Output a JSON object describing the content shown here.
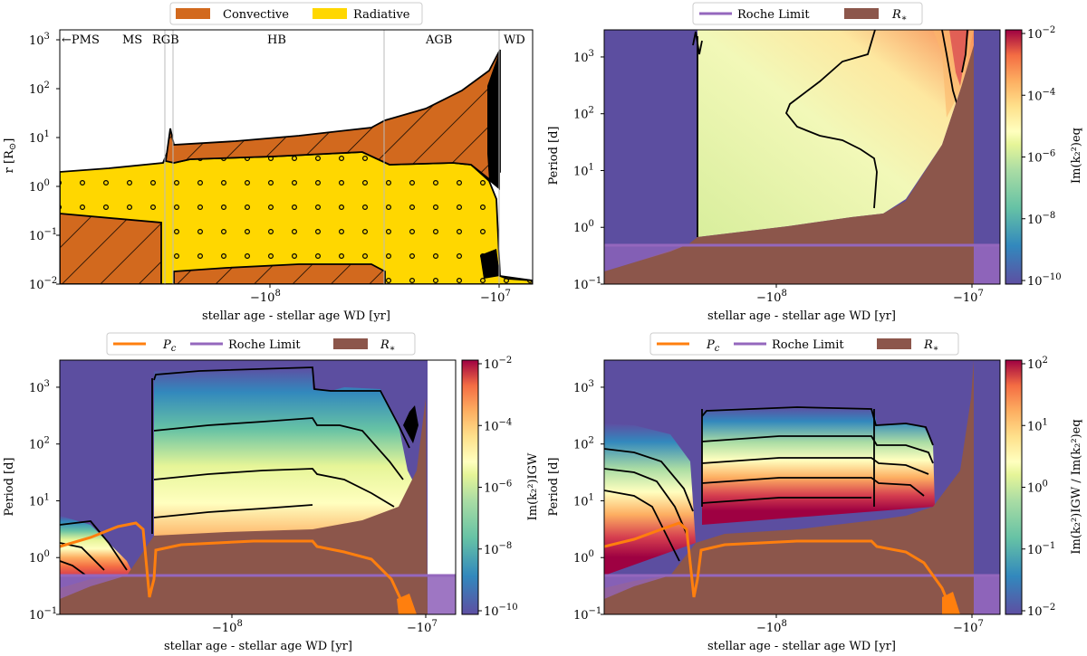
{
  "colors": {
    "convective": "#d2691e",
    "radiative": "#ffd700",
    "background_mode": "#5c4ea0",
    "roche": "#9467bd",
    "rstar": "#8c564b",
    "pc": "#ff7f0e",
    "contour": "#000000",
    "colormap": "Spectral_r"
  },
  "panels": {
    "top_left": {
      "legend": [
        "Convective",
        "Radiative"
      ],
      "ylabel": "r [R$_\\odot$]",
      "ylabel_text": "r [R",
      "ylabel_sub": "⊙",
      "ylabel_end": "]",
      "xlabel": "stellar age - stellar age WD [yr]",
      "regions": [
        "←PMS",
        "MS",
        "RGB",
        "HB",
        "AGB",
        "WD"
      ]
    },
    "top_right": {
      "legend": [
        "Roche Limit",
        "R"
      ],
      "legend_sub": "∗",
      "ylabel": "Period [d]",
      "xlabel": "stellar age - stellar age WD [yr]",
      "cbar_label": "Im(k₂²)eq",
      "cbar_ticks": [
        "10",
        "10",
        "10",
        "10",
        "10"
      ],
      "cbar_exps": [
        "−2",
        "−4",
        "−6",
        "−8",
        "−10"
      ]
    },
    "bottom_left": {
      "legend": [
        "P",
        "Roche Limit",
        "R"
      ],
      "legend_subs": [
        "c",
        "",
        "∗"
      ],
      "ylabel": "Period [d]",
      "xlabel": "stellar age - stellar age WD [yr]",
      "cbar_label": "Im(k₂²)IGW",
      "cbar_ticks": [
        "10",
        "10",
        "10",
        "10",
        "10"
      ],
      "cbar_exps": [
        "−2",
        "−4",
        "−6",
        "−8",
        "−10"
      ]
    },
    "bottom_right": {
      "legend": [
        "P",
        "Roche Limit",
        "R"
      ],
      "legend_subs": [
        "c",
        "",
        "∗"
      ],
      "ylabel": "Period [d]",
      "xlabel": "stellar age - stellar age WD [yr]",
      "cbar_label": "Im(k₂²)IGW / Im(k₂²)eq",
      "cbar_ticks": [
        "10",
        "10",
        "10",
        "10",
        "10"
      ],
      "cbar_exps": [
        "2",
        "1",
        "0",
        "−1",
        "−2"
      ]
    }
  },
  "chart_data": [
    {
      "type": "area",
      "title": "",
      "xlabel": "stellar age - stellar age WD [yr]",
      "ylabel": "r [R⊙]",
      "xscale": "symlog",
      "yscale": "log",
      "ylim": [
        0.01,
        1000
      ],
      "x_ticks": [
        "−10^8",
        "−10^7"
      ],
      "y_ticks": [
        "10^-2",
        "10^-1",
        "10^0",
        "10^1",
        "10^2",
        "10^3"
      ],
      "legend": [
        "Convective",
        "Radiative"
      ],
      "legend_placement": "top",
      "series": [
        {
          "name": "Convective",
          "description": "envelope and core convection zones (hatched)"
        },
        {
          "name": "Radiative",
          "description": "radiative zones (dotted)"
        }
      ],
      "phases": [
        "PMS",
        "MS",
        "RGB",
        "HB",
        "AGB",
        "WD"
      ],
      "stellar_radius_approx": [
        {
          "phase": "PMS",
          "r": 1.7
        },
        {
          "phase": "RGB",
          "r": 8.0
        },
        {
          "phase": "HB",
          "r": 10.0
        },
        {
          "phase": "AGB",
          "r": 400.0
        },
        {
          "phase": "WD",
          "r": 0.013
        }
      ]
    },
    {
      "type": "heatmap",
      "title": "",
      "xlabel": "stellar age - stellar age WD [yr]",
      "ylabel": "Period [d]",
      "yscale": "log",
      "ylim": [
        0.1,
        3000
      ],
      "x_ticks": [
        "−10^8",
        "−10^7"
      ],
      "colorbar": {
        "label": "Im(k₂²)eq",
        "scale": "log",
        "range": [
          1e-10,
          0.01
        ]
      },
      "legend": [
        "Roche Limit",
        "R∗"
      ],
      "legend_placement": "top"
    },
    {
      "type": "heatmap",
      "title": "",
      "xlabel": "stellar age - stellar age WD [yr]",
      "ylabel": "Period [d]",
      "yscale": "log",
      "ylim": [
        0.1,
        3000
      ],
      "x_ticks": [
        "−10^8",
        "−10^7"
      ],
      "colorbar": {
        "label": "Im(k₂²)IGW",
        "scale": "log",
        "range": [
          1e-10,
          0.01
        ]
      },
      "legend": [
        "Pc",
        "Roche Limit",
        "R∗"
      ],
      "legend_placement": "top"
    },
    {
      "type": "heatmap",
      "title": "",
      "xlabel": "stellar age - stellar age WD [yr]",
      "ylabel": "Period [d]",
      "yscale": "log",
      "ylim": [
        0.1,
        3000
      ],
      "x_ticks": [
        "−10^8",
        "−10^7"
      ],
      "colorbar": {
        "label": "Im(k₂²)IGW / Im(k₂²)eq",
        "scale": "log",
        "range": [
          0.01,
          100.0
        ]
      },
      "legend": [
        "Pc",
        "Roche Limit",
        "R∗"
      ],
      "legend_placement": "top"
    }
  ]
}
